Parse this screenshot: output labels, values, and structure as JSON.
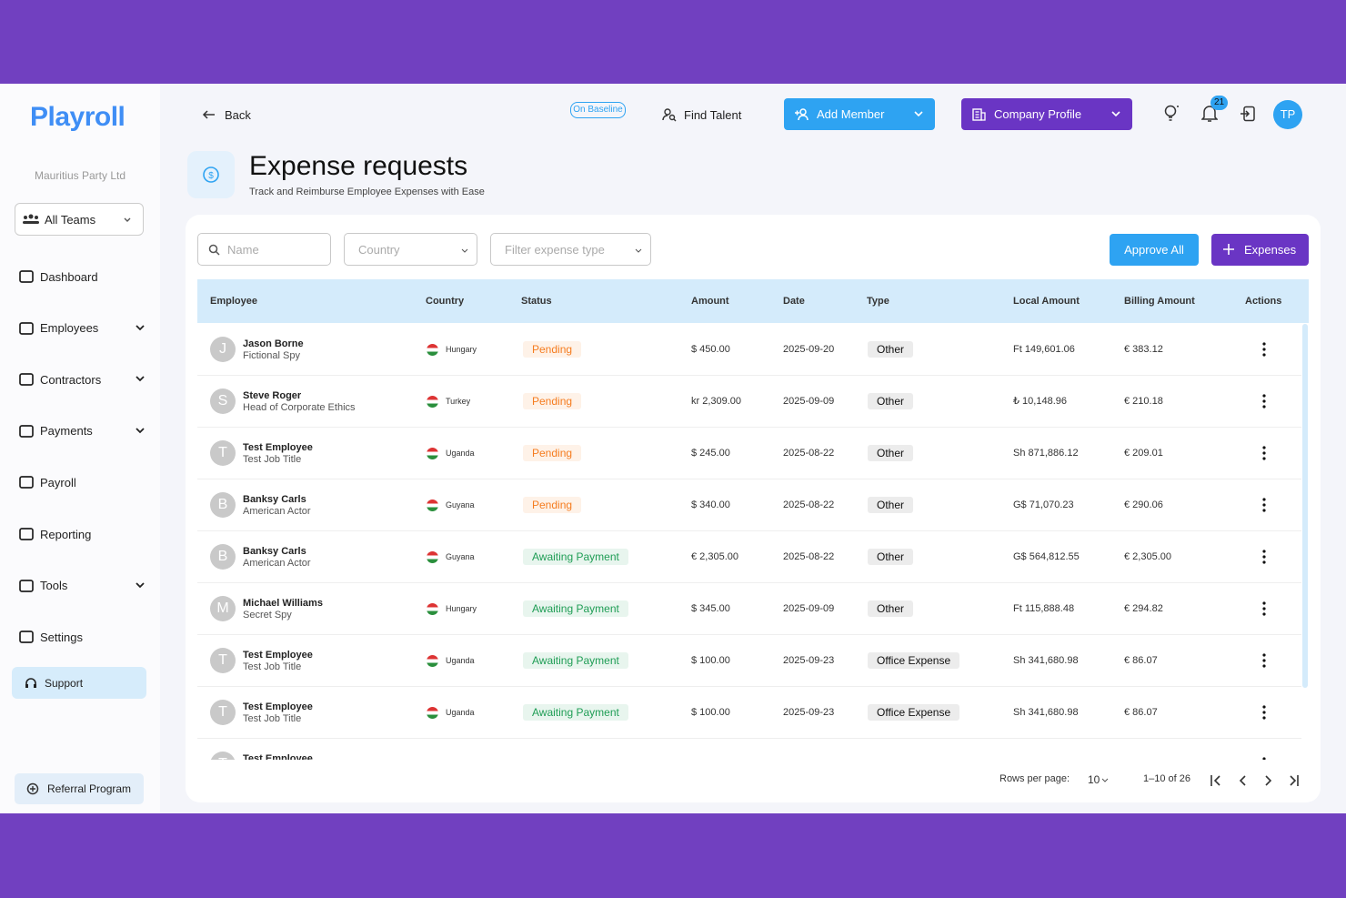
{
  "sidebar": {
    "logo": "Playroll",
    "company": "Mauritius Party Ltd",
    "team_select": "All Teams",
    "nav": [
      {
        "label": "Dashboard",
        "expandable": false
      },
      {
        "label": "Employees",
        "expandable": true
      },
      {
        "label": "Contractors",
        "expandable": true
      },
      {
        "label": "Payments",
        "expandable": true
      },
      {
        "label": "Payroll",
        "expandable": false
      },
      {
        "label": "Reporting",
        "expandable": false
      },
      {
        "label": "Tools",
        "expandable": true
      },
      {
        "label": "Settings",
        "expandable": false
      }
    ],
    "support": "Support",
    "referral": "Referral Program"
  },
  "topbar": {
    "back": "Back",
    "badge": "On Baseline",
    "find_talent": "Find Talent",
    "add_member": "Add Member",
    "company_profile": "Company Profile",
    "notifications": "21",
    "avatar": "TP"
  },
  "header": {
    "title": "Expense requests",
    "subtitle": "Track and Reimburse Employee Expenses with Ease"
  },
  "filters": {
    "name": "Name",
    "country": "Country",
    "type": "Filter expense type",
    "approve_all": "Approve All",
    "expenses": "Expenses"
  },
  "table": {
    "columns": [
      "Employee",
      "Country",
      "Status",
      "Amount",
      "Date",
      "Type",
      "Local Amount",
      "Billing Amount",
      "Actions"
    ],
    "rows": [
      {
        "initial": "J",
        "name": "Jason Borne",
        "job": "Fictional Spy",
        "country": "Hungary",
        "status": "Pending",
        "status_color": "#f57c1f",
        "amount": "$ 450.00",
        "date": "2025-09-20",
        "type": "Other",
        "local_amount": "Ft 149,601.06",
        "billing_amount": "€ 383.12"
      },
      {
        "initial": "S",
        "name": "Steve Roger",
        "job": "Head of Corporate Ethics",
        "country": "Turkey",
        "status": "Pending",
        "status_color": "#f57c1f",
        "amount": "kr 2,309.00",
        "date": "2025-09-09",
        "type": "Other",
        "local_amount": "₺ 10,148.96",
        "billing_amount": "€ 210.18"
      },
      {
        "initial": "T",
        "name": "Test Employee",
        "job": "Test Job Title",
        "country": "Uganda",
        "status": "Pending",
        "status_color": "#f57c1f",
        "amount": "$ 245.00",
        "date": "2025-08-22",
        "type": "Other",
        "local_amount": "Sh 871,886.12",
        "billing_amount": "€ 209.01"
      },
      {
        "initial": "B",
        "name": "Banksy Carls",
        "job": "American Actor",
        "country": "Guyana",
        "status": "Pending",
        "status_color": "#f57c1f",
        "amount": "$ 340.00",
        "date": "2025-08-22",
        "type": "Other",
        "local_amount": "G$ 71,070.23",
        "billing_amount": "€ 290.06"
      },
      {
        "initial": "B",
        "name": "Banksy Carls",
        "job": "American Actor",
        "country": "Guyana",
        "status": "Awaiting Payment",
        "status_color": "#1f9d55",
        "amount": "€ 2,305.00",
        "date": "2025-08-22",
        "type": "Other",
        "local_amount": "G$ 564,812.55",
        "billing_amount": "€ 2,305.00"
      },
      {
        "initial": "M",
        "name": "Michael Williams",
        "job": "Secret Spy",
        "country": "Hungary",
        "status": "Awaiting Payment",
        "status_color": "#1f9d55",
        "amount": "$ 345.00",
        "date": "2025-09-09",
        "type": "Other",
        "local_amount": "Ft 115,888.48",
        "billing_amount": "€ 294.82"
      },
      {
        "initial": "T",
        "name": "Test Employee",
        "job": "Test Job Title",
        "country": "Uganda",
        "status": "Awaiting Payment",
        "status_color": "#1f9d55",
        "amount": "$ 100.00",
        "date": "2025-09-23",
        "type": "Office Expense",
        "local_amount": "Sh 341,680.98",
        "billing_amount": "€ 86.07"
      },
      {
        "initial": "T",
        "name": "Test Employee",
        "job": "Test Job Title",
        "country": "Uganda",
        "status": "Awaiting Payment",
        "status_color": "#1f9d55",
        "amount": "$ 100.00",
        "date": "2025-09-23",
        "type": "Office Expense",
        "local_amount": "Sh 341,680.98",
        "billing_amount": "€ 86.07"
      },
      {
        "initial": "T",
        "name": "Test Employee"
      }
    ]
  },
  "pagination": {
    "rows_per_page_label": "Rows per page:",
    "rows_per_page": "10",
    "range": "1–10 of 26"
  }
}
